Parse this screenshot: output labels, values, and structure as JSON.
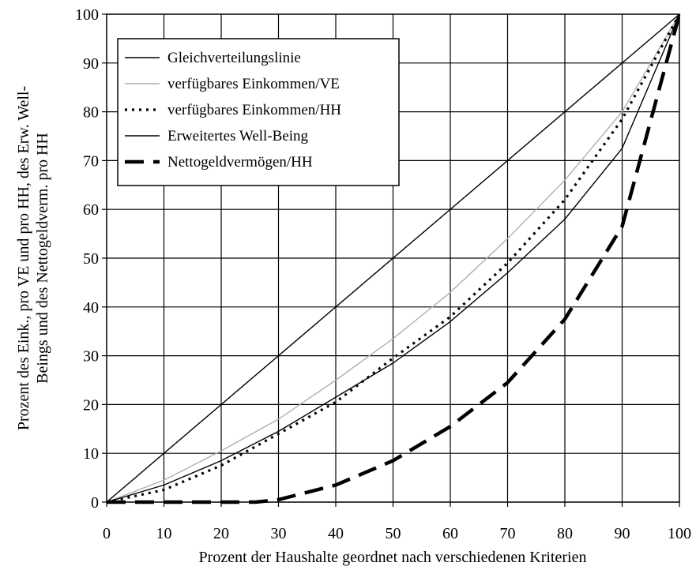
{
  "chart_data": {
    "type": "line",
    "xlabel": "Prozent der Haushalte geordnet nach verschiedenen Kriterien",
    "ylabel": [
      "Prozent des Eink., pro VE und pro HH, des Erw. Well-",
      "Beings und des Nettogeldverm. pro HH"
    ],
    "xlim": [
      0,
      100
    ],
    "ylim": [
      0,
      100
    ],
    "x_ticks": [
      "0",
      "10",
      "20",
      "30",
      "40",
      "50",
      "60",
      "70",
      "80",
      "90",
      "100"
    ],
    "y_ticks": [
      "0",
      "10",
      "20",
      "30",
      "40",
      "50",
      "60",
      "70",
      "80",
      "90",
      "100"
    ],
    "grid": true,
    "legend_position": "top-left",
    "series": [
      {
        "name": "Gleichverteilungslinie",
        "color": "#000000",
        "style": "solid-thin",
        "x": [
          0,
          100
        ],
        "y": [
          0,
          100
        ]
      },
      {
        "name": "verfügbares Einkommen/VE",
        "color": "#b0b0b0",
        "style": "solid-thin",
        "x": [
          0,
          10,
          20,
          30,
          40,
          50,
          60,
          70,
          80,
          90,
          100
        ],
        "y": [
          0,
          4.5,
          10.5,
          17,
          25,
          33.5,
          43,
          54,
          66,
          80,
          100
        ]
      },
      {
        "name": "verfügbares Einkommen/HH",
        "color": "#000000",
        "style": "dotted",
        "x": [
          0,
          10,
          20,
          30,
          40,
          50,
          60,
          70,
          80,
          90,
          100
        ],
        "y": [
          0,
          2.5,
          7.5,
          14,
          20.5,
          29.5,
          38,
          49,
          62,
          78.5,
          100
        ]
      },
      {
        "name": "Erweitertes Well-Being",
        "color": "#000000",
        "style": "solid-thin",
        "x": [
          0,
          10,
          20,
          30,
          40,
          50,
          60,
          70,
          80,
          90,
          100
        ],
        "y": [
          0,
          3.5,
          8.5,
          14.5,
          21.5,
          28.5,
          37,
          47,
          58,
          72.5,
          100
        ]
      },
      {
        "name": "Nettogeldvermögen/HH",
        "color": "#000000",
        "style": "dashed-thick",
        "x": [
          0,
          10,
          20,
          26,
          30,
          40,
          50,
          60,
          70,
          80,
          90,
          100
        ],
        "y": [
          0,
          0,
          0,
          0,
          0.5,
          3.5,
          8.5,
          15.5,
          24.5,
          37.5,
          56.5,
          100
        ]
      }
    ]
  }
}
